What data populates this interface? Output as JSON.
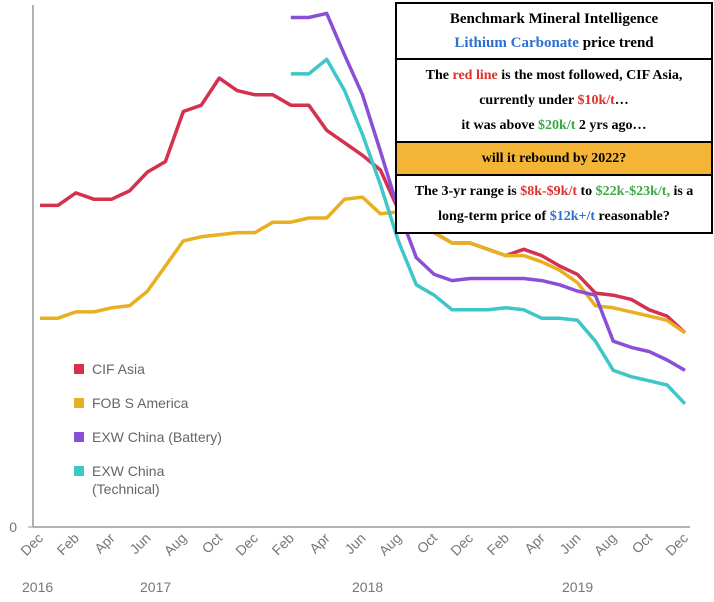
{
  "chart_data": {
    "type": "line",
    "categories": [
      "Dec",
      null,
      "Feb",
      null,
      "Apr",
      null,
      "Jun",
      null,
      "Aug",
      null,
      "Oct",
      null,
      "Dec",
      null,
      "Feb",
      null,
      "Apr",
      null,
      "Jun",
      null,
      "Aug",
      null,
      "Oct",
      null,
      "Dec",
      null,
      "Feb",
      null,
      "Apr",
      null,
      "Jun",
      null,
      "Aug",
      null,
      "Oct",
      null,
      "Dec"
    ],
    "year_labels": [
      "2016",
      "2017",
      "2018",
      "2019"
    ],
    "ylim": [
      0,
      25
    ],
    "yticks": [
      0
    ],
    "series": [
      {
        "name": "CIF Asia",
        "color": "#d6304f",
        "values": [
          15.4,
          15.4,
          16.0,
          15.7,
          15.7,
          16.1,
          17.0,
          17.5,
          19.9,
          20.2,
          21.5,
          20.9,
          20.7,
          20.7,
          20.2,
          20.2,
          19.0,
          18.4,
          17.8,
          17.1,
          15.2,
          14.6,
          14.1,
          13.6,
          13.6,
          13.3,
          13.0,
          13.3,
          13.0,
          12.5,
          12.1,
          11.2,
          11.1,
          10.9,
          10.4,
          10.1,
          9.3
        ]
      },
      {
        "name": "FOB S America",
        "color": "#e8b020",
        "values": [
          10.0,
          10.0,
          10.3,
          10.3,
          10.5,
          10.6,
          11.3,
          12.5,
          13.7,
          13.9,
          14.0,
          14.1,
          14.1,
          14.6,
          14.6,
          14.8,
          14.8,
          15.7,
          15.8,
          15.0,
          15.1,
          14.7,
          14.1,
          13.6,
          13.6,
          13.3,
          13.0,
          13.0,
          12.7,
          12.3,
          11.7,
          10.6,
          10.5,
          10.3,
          10.1,
          9.9,
          9.3
        ]
      },
      {
        "name": "EXW China (Battery)",
        "color": "#8a4fd6",
        "values": [
          null,
          null,
          null,
          null,
          null,
          null,
          null,
          null,
          null,
          null,
          null,
          null,
          null,
          null,
          24.4,
          24.4,
          24.6,
          22.6,
          20.7,
          18.0,
          15.2,
          12.9,
          12.1,
          11.8,
          11.9,
          11.9,
          11.9,
          11.9,
          11.8,
          11.6,
          11.3,
          11.1,
          8.9,
          8.6,
          8.4,
          8.0,
          7.5
        ]
      },
      {
        "name": "EXW China (Technical)",
        "color": "#3ec6c9",
        "values": [
          null,
          null,
          null,
          null,
          null,
          null,
          null,
          null,
          null,
          null,
          null,
          null,
          null,
          null,
          21.7,
          21.7,
          22.4,
          20.9,
          18.8,
          16.4,
          13.7,
          11.6,
          11.1,
          10.4,
          10.4,
          10.4,
          10.5,
          10.4,
          10.0,
          10.0,
          9.9,
          8.9,
          7.5,
          7.2,
          7.0,
          6.8,
          5.9
        ]
      }
    ],
    "annotation": {
      "sections": [
        {
          "lines": [
            [
              {
                "text": "Benchmark Mineral Intelligence"
              }
            ],
            [
              {
                "text": "Lithium Carbonate",
                "color": "#2f6fd0"
              },
              {
                "text": " price trend"
              }
            ]
          ]
        },
        {
          "lines": [
            [
              {
                "text": "The "
              },
              {
                "text": "red line",
                "color": "#e0302a"
              },
              {
                "text": " is the most followed, CIF Asia, currently under "
              },
              {
                "text": "$10k/t",
                "color": "#e0302a"
              },
              {
                "text": "…"
              }
            ],
            [
              {
                "text": "it was above "
              },
              {
                "text": "$20k/t",
                "color": "#3aa845"
              },
              {
                "text": " 2 yrs ago…"
              }
            ]
          ]
        },
        {
          "background": "#f4b537",
          "lines": [
            [
              {
                "text": "will it rebound by 2022?"
              }
            ]
          ]
        },
        {
          "lines": [
            [
              {
                "text": "The 3-yr range is "
              },
              {
                "text": "$8k-$9k/t",
                "color": "#e0302a"
              },
              {
                "text": " to "
              },
              {
                "text": "$22k-$23k/t,",
                "color": "#3aa845"
              },
              {
                "text": " is a long-term price of "
              },
              {
                "text": "$12k+/t",
                "color": "#2f6fd0"
              },
              {
                "text": " reasonable?"
              }
            ]
          ]
        }
      ]
    }
  }
}
